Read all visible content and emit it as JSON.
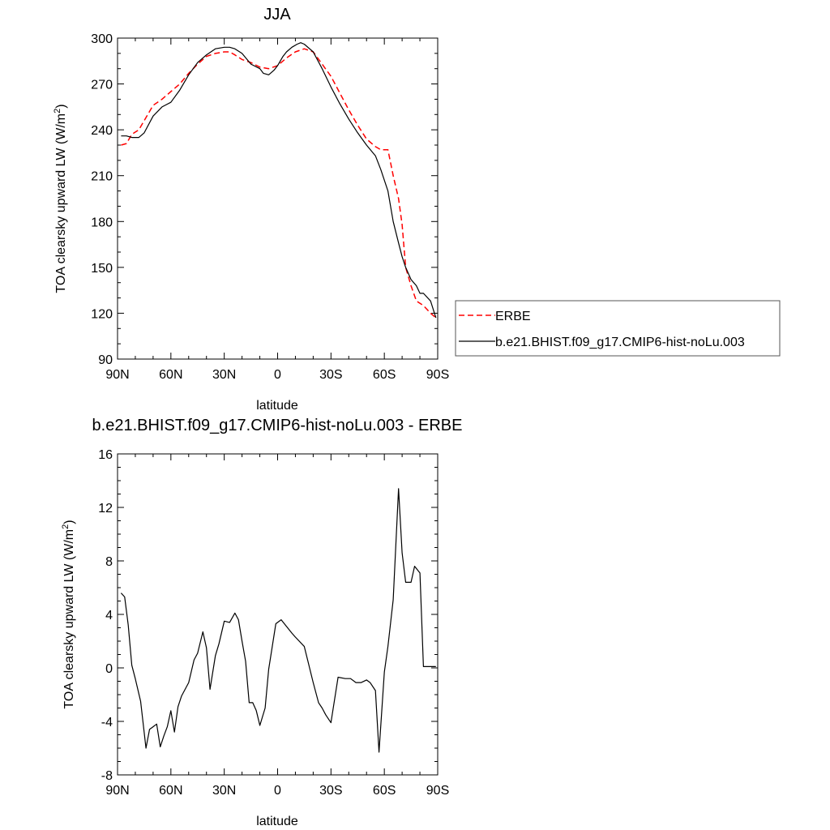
{
  "chart_data": [
    {
      "type": "line",
      "title": "JJA",
      "xlabel": "latitude",
      "ylabel": "TOA clearsky upward LW (W/m",
      "ylabel_sup": "2",
      "ylabel_tail": ")",
      "xlim": [
        90,
        -90
      ],
      "ylim": [
        90,
        300
      ],
      "yticks": [
        90,
        120,
        150,
        180,
        210,
        240,
        270,
        300
      ],
      "xtick_values": [
        90,
        60,
        30,
        0,
        -30,
        -60,
        -90
      ],
      "xtick_labels": [
        "90N",
        "60N",
        "30N",
        "0",
        "30S",
        "60S",
        "90S"
      ],
      "legend_position": "right",
      "series": [
        {
          "name": "ERBE",
          "color": "#ff0000",
          "style": "dashed",
          "x": [
            88,
            85,
            82,
            78,
            75,
            70,
            65,
            60,
            55,
            50,
            45,
            40,
            35,
            30,
            27,
            24,
            20,
            15,
            10,
            5,
            0,
            -5,
            -10,
            -15,
            -20,
            -25,
            -30,
            -35,
            -40,
            -45,
            -50,
            -55,
            -58,
            -62,
            -65,
            -68,
            -70,
            -72,
            -75,
            -78,
            -82,
            -86,
            -89
          ],
          "y": [
            230,
            231,
            237,
            240,
            246,
            256,
            260,
            265,
            270,
            277,
            283,
            288,
            290,
            291,
            291,
            289,
            286,
            284,
            281,
            280,
            282,
            287,
            291,
            293,
            291,
            283,
            275,
            264,
            253,
            243,
            234,
            229,
            227,
            227,
            210,
            195,
            178,
            150,
            138,
            128,
            125,
            120,
            117
          ]
        },
        {
          "name": "b.e21.BHIST.f09_g17.CMIP6-hist-noLu.003",
          "color": "#000000",
          "style": "solid",
          "x": [
            88,
            85,
            82,
            78,
            75,
            70,
            65,
            60,
            55,
            50,
            45,
            40,
            35,
            30,
            27,
            24,
            20,
            15,
            10,
            8,
            5,
            2,
            0,
            -3,
            -5,
            -8,
            -11,
            -13,
            -15,
            -20,
            -25,
            -30,
            -35,
            -40,
            -45,
            -50,
            -55,
            -58,
            -62,
            -65,
            -68,
            -70,
            -72,
            -75,
            -78,
            -80,
            -82,
            -86,
            -89
          ],
          "y": [
            236,
            236,
            235,
            235,
            238,
            249,
            255,
            258,
            266,
            276,
            284,
            289,
            293,
            294,
            294,
            293,
            290,
            283,
            280,
            277,
            276,
            279,
            282,
            288,
            291,
            294,
            296,
            297,
            296,
            291,
            280,
            268,
            257,
            247,
            238,
            230,
            223,
            214,
            200,
            180,
            166,
            157,
            150,
            142,
            138,
            133,
            133,
            128,
            117
          ]
        }
      ]
    },
    {
      "type": "line",
      "title": "b.e21.BHIST.f09_g17.CMIP6-hist-noLu.003 - ERBE",
      "xlabel": "latitude",
      "ylabel": "TOA clearsky upward LW (W/m",
      "ylabel_sup": "2",
      "ylabel_tail": ")",
      "xlim": [
        90,
        -90
      ],
      "ylim": [
        -8,
        16
      ],
      "yticks": [
        -8,
        -4,
        0,
        4,
        8,
        12,
        16
      ],
      "xtick_values": [
        90,
        60,
        30,
        0,
        -30,
        -60,
        -90
      ],
      "xtick_labels": [
        "90N",
        "60N",
        "30N",
        "0",
        "30S",
        "60S",
        "90S"
      ],
      "series": [
        {
          "color": "#000000",
          "style": "solid",
          "x": [
            88,
            86,
            84,
            82,
            80,
            77,
            74,
            72,
            70,
            68,
            66,
            64,
            62,
            60,
            58,
            56,
            54,
            52,
            50,
            47,
            45,
            42,
            40,
            38,
            35,
            33,
            30,
            27,
            24,
            22,
            20,
            18,
            16,
            14,
            12,
            10,
            7,
            5,
            3,
            1,
            -2,
            -5,
            -8,
            -10,
            -15,
            -20,
            -23,
            -25,
            -27,
            -30,
            -34,
            -38,
            -41,
            -44,
            -47,
            -50,
            -52,
            -55,
            -57,
            -60,
            -62,
            -65,
            -68,
            -70,
            -72,
            -75,
            -77,
            -80,
            -82,
            -86,
            -89
          ],
          "y": [
            5.6,
            5.3,
            3.2,
            0.2,
            -0.8,
            -2.5,
            -6.0,
            -4.6,
            -4.4,
            -4.2,
            -5.9,
            -5.1,
            -4.4,
            -3.2,
            -4.8,
            -2.9,
            -2.1,
            -1.6,
            -1.1,
            0.6,
            1.1,
            2.7,
            1.5,
            -1.6,
            0.9,
            1.8,
            3.5,
            3.4,
            4.1,
            3.6,
            2.0,
            0.5,
            -2.6,
            -2.6,
            -3.2,
            -4.3,
            -3.0,
            -0.1,
            1.6,
            3.3,
            3.6,
            3.1,
            2.6,
            2.3,
            1.6,
            -1.1,
            -2.6,
            -3.0,
            -3.5,
            -4.1,
            -0.7,
            -0.8,
            -0.8,
            -1.1,
            -1.1,
            -0.9,
            -1.1,
            -1.7,
            -6.3,
            -0.3,
            1.6,
            5.1,
            13.4,
            8.6,
            6.4,
            6.4,
            7.6,
            7.1,
            0.1,
            0.1,
            0.1
          ]
        }
      ]
    }
  ]
}
